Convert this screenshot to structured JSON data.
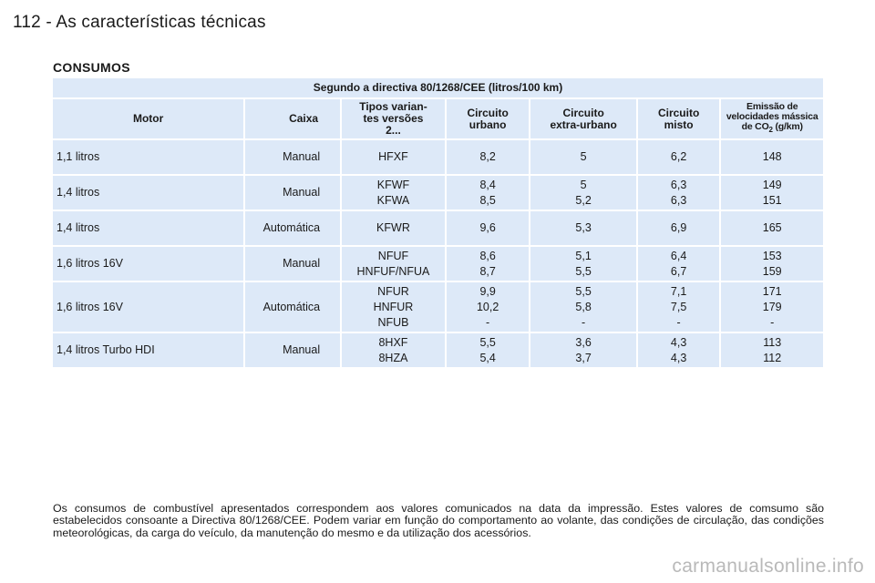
{
  "header": {
    "page_title": "112 - As características técnicas"
  },
  "section": {
    "title": "CONSUMOS"
  },
  "table": {
    "directive_header": "Segundo a directiva 80/1268/CEE (litros/100 km)",
    "columns": {
      "motor": "Motor",
      "caixa": "Caixa",
      "tipos": [
        "Tipos varian-",
        "tes versões",
        "2..."
      ],
      "urbano": [
        "Circuito",
        "urbano"
      ],
      "extra": [
        "Circuito",
        "extra-urbano"
      ],
      "misto": [
        "Circuito",
        "misto"
      ],
      "emissao": [
        "Emissão de",
        "velocidades mássica",
        "de CO",
        "2",
        " (g/km)"
      ]
    },
    "rows": [
      {
        "motor": "1,1 litros",
        "caixa": "Manual",
        "tipos": [
          "HFXF"
        ],
        "urbano": [
          "8,2"
        ],
        "extra": [
          "5"
        ],
        "misto": [
          "6,2"
        ],
        "emissao": [
          "148"
        ]
      },
      {
        "motor": "1,4 litros",
        "caixa": "Manual",
        "tipos": [
          "KFWF",
          "KFWA"
        ],
        "urbano": [
          "8,4",
          "8,5"
        ],
        "extra": [
          "5",
          "5,2"
        ],
        "misto": [
          "6,3",
          "6,3"
        ],
        "emissao": [
          "149",
          "151"
        ]
      },
      {
        "motor": "1,4 litros",
        "caixa": "Automática",
        "tipos": [
          "KFWR"
        ],
        "urbano": [
          "9,6"
        ],
        "extra": [
          "5,3"
        ],
        "misto": [
          "6,9"
        ],
        "emissao": [
          "165"
        ]
      },
      {
        "motor": "1,6 litros 16V",
        "caixa": "Manual",
        "tipos": [
          "NFUF",
          "HNFUF/NFUA"
        ],
        "urbano": [
          "8,6",
          "8,7"
        ],
        "extra": [
          "5,1",
          "5,5"
        ],
        "misto": [
          "6,4",
          "6,7"
        ],
        "emissao": [
          "153",
          "159"
        ]
      },
      {
        "motor": "1,6 litros 16V",
        "caixa": "Automática",
        "tipos": [
          "NFUR",
          "HNFUR",
          "NFUB"
        ],
        "urbano": [
          "9,9",
          "10,2",
          "-"
        ],
        "extra": [
          "5,5",
          "5,8",
          "-"
        ],
        "misto": [
          "7,1",
          "7,5",
          "-"
        ],
        "emissao": [
          "171",
          "179",
          "-"
        ]
      },
      {
        "motor": "1,4 litros Turbo HDI",
        "caixa": "Manual",
        "tipos": [
          "8HXF",
          "8HZA"
        ],
        "urbano": [
          "5,5",
          "5,4"
        ],
        "extra": [
          "3,6",
          "3,7"
        ],
        "misto": [
          "4,3",
          "4,3"
        ],
        "emissao": [
          "113",
          "112"
        ]
      }
    ]
  },
  "footnote": "Os consumos de combustível apresentados correspondem aos valores comunicados na data da impressão. Estes valores de comsumo são estabelecidos consoante a Directiva 80/1268/CEE. Podem variar em função do comportamento ao volante, das condições de circulação, das condições meteorológicas, da carga do veículo, da manutenção do mesmo e da utilização dos acessórios.",
  "watermark": "carmanualsonline.info"
}
